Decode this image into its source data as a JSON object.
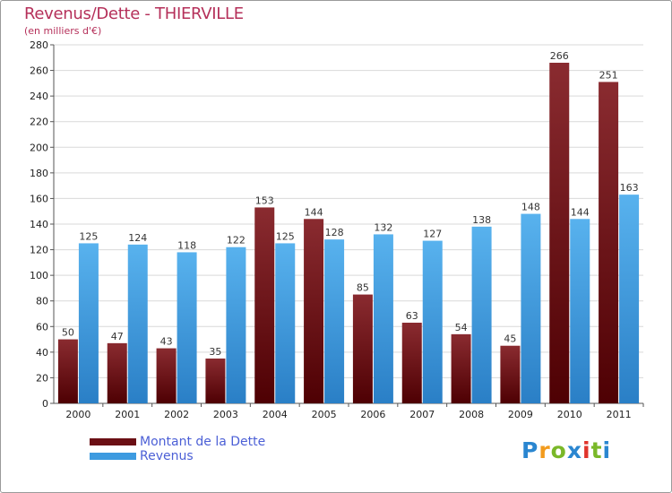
{
  "header": {
    "title": "Revenus/Dette - THIERVILLE",
    "subtitle": "(en milliers d'€)"
  },
  "chart_data": {
    "type": "bar",
    "title": "Revenus/Dette - THIERVILLE",
    "ylabel": "(en milliers d'€)",
    "xlabel": "",
    "ylim": [
      0,
      280
    ],
    "yticks": [
      0,
      20,
      40,
      60,
      80,
      100,
      120,
      140,
      160,
      180,
      200,
      220,
      240,
      260,
      280
    ],
    "grid": true,
    "categories": [
      "2000",
      "2001",
      "2002",
      "2003",
      "2004",
      "2005",
      "2006",
      "2007",
      "2008",
      "2009",
      "2010",
      "2011"
    ],
    "series": [
      {
        "name": "Montant de la Dette",
        "color": "#7a1a1f",
        "values": [
          50,
          47,
          43,
          35,
          153,
          144,
          85,
          63,
          54,
          45,
          266,
          251
        ]
      },
      {
        "name": "Revenus",
        "color": "#4ea6e6",
        "values": [
          125,
          124,
          118,
          122,
          125,
          128,
          132,
          127,
          138,
          148,
          144,
          163
        ]
      }
    ],
    "legend_position": "bottom-left"
  },
  "legend": {
    "items": [
      {
        "label": "Montant de la Dette",
        "color": "#6b0f14"
      },
      {
        "label": "Revenus",
        "color": "#3d9be0"
      }
    ]
  },
  "logo": {
    "letters": [
      "P",
      "r",
      "o",
      "x",
      "i",
      "t",
      "i"
    ],
    "colors": [
      "#2a86d0",
      "#f29b1d",
      "#7ab829",
      "#2a86d0",
      "#e0342c",
      "#7ab829",
      "#2a86d0"
    ]
  }
}
